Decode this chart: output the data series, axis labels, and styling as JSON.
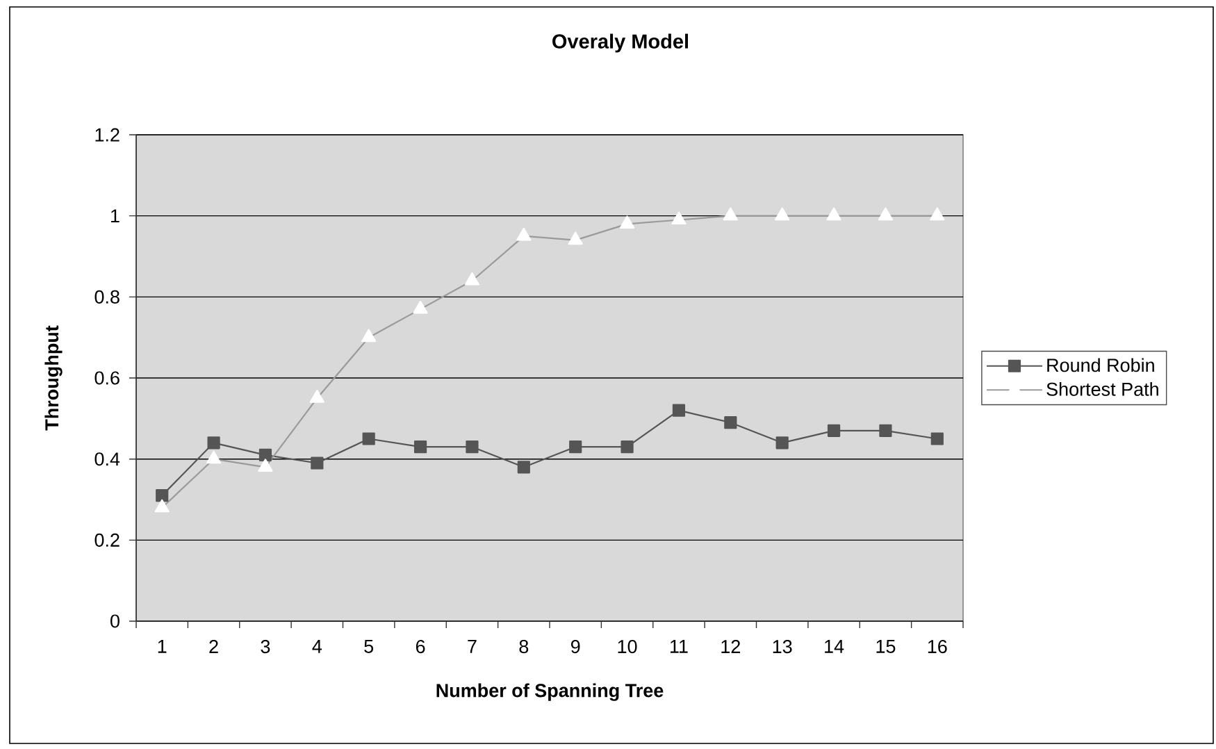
{
  "chart_data": {
    "type": "line",
    "title": "Overaly Model",
    "xlabel": "Number of Spanning Tree",
    "ylabel": "Throughput",
    "categories": [
      "1",
      "2",
      "3",
      "4",
      "5",
      "6",
      "7",
      "8",
      "9",
      "10",
      "11",
      "12",
      "13",
      "14",
      "15",
      "16"
    ],
    "series": [
      {
        "name": "Round Robin",
        "color": "#555555",
        "marker": "square",
        "values": [
          0.31,
          0.44,
          0.41,
          0.39,
          0.45,
          0.43,
          0.43,
          0.38,
          0.43,
          0.43,
          0.52,
          0.49,
          0.44,
          0.47,
          0.47,
          0.45
        ]
      },
      {
        "name": "Shortest Path",
        "color": "#9a9a9a",
        "marker": "triangle",
        "values": [
          0.28,
          0.4,
          0.38,
          0.55,
          0.7,
          0.77,
          0.84,
          0.95,
          0.94,
          0.98,
          0.99,
          1,
          1,
          1,
          1,
          1
        ]
      }
    ],
    "ylim": [
      0,
      1.2
    ],
    "yticks": [
      0,
      0.2,
      0.4,
      0.6,
      0.8,
      1,
      1.2
    ],
    "grid": "y",
    "legend": "right"
  }
}
